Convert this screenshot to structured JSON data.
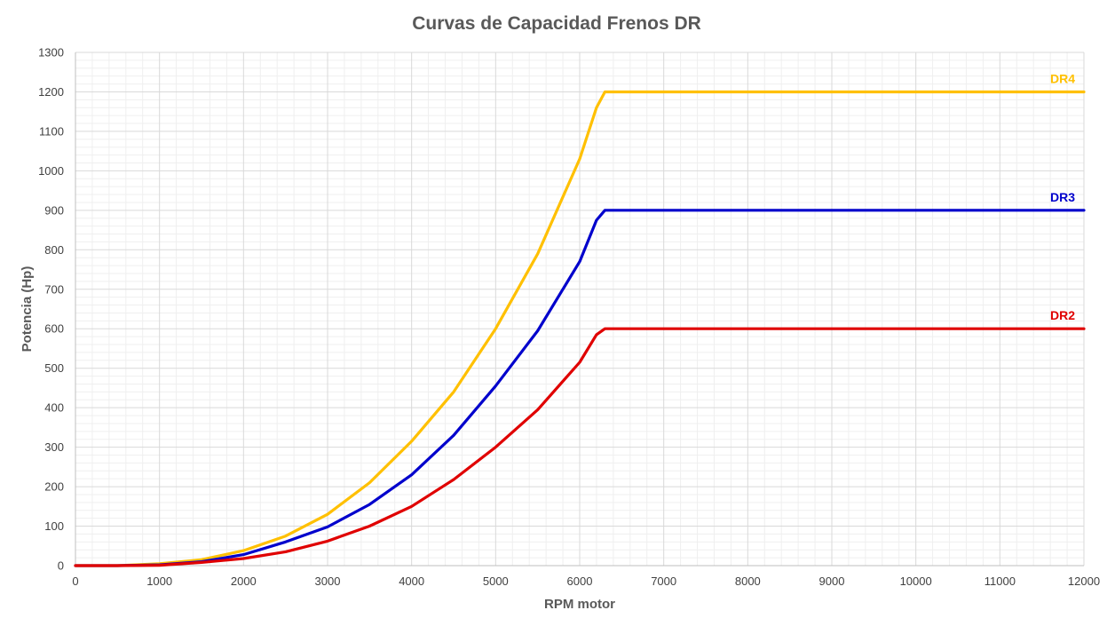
{
  "chart_data": {
    "type": "line",
    "title": "Curvas de Capacidad Frenos DR",
    "xlabel": "RPM motor",
    "ylabel": "Potencia (Hp)",
    "xlim": [
      0,
      12000
    ],
    "ylim": [
      0,
      1300
    ],
    "x_ticks": [
      "0",
      "1000",
      "2000",
      "3000",
      "4000",
      "5000",
      "6000",
      "7000",
      "8000",
      "9000",
      "10000",
      "11000",
      "12000"
    ],
    "y_ticks": [
      "0",
      "100",
      "200",
      "300",
      "400",
      "500",
      "600",
      "700",
      "800",
      "900",
      "1000",
      "1100",
      "1200",
      "1300"
    ],
    "grid": true,
    "minor_grid": true,
    "legend": "labels at right end of each line",
    "x": [
      0,
      500,
      1000,
      1500,
      2000,
      2500,
      3000,
      3500,
      4000,
      4500,
      5000,
      5500,
      6000,
      6200,
      6300,
      7000,
      8000,
      9000,
      10000,
      11000,
      12000
    ],
    "series": [
      {
        "name": "DR4",
        "color": "#FFC000",
        "values": [
          0,
          0,
          5,
          15,
          38,
          75,
          130,
          210,
          315,
          440,
          600,
          790,
          1030,
          1160,
          1200,
          1200,
          1200,
          1200,
          1200,
          1200,
          1200
        ]
      },
      {
        "name": "DR3",
        "color": "#0000CC",
        "values": [
          0,
          0,
          2,
          10,
          28,
          60,
          98,
          155,
          230,
          330,
          455,
          595,
          770,
          875,
          900,
          900,
          900,
          900,
          900,
          900,
          900
        ]
      },
      {
        "name": "DR2",
        "color": "#E00000",
        "values": [
          0,
          0,
          1,
          8,
          18,
          35,
          62,
          100,
          150,
          218,
          300,
          395,
          515,
          585,
          600,
          600,
          600,
          600,
          600,
          600,
          600
        ]
      }
    ]
  }
}
